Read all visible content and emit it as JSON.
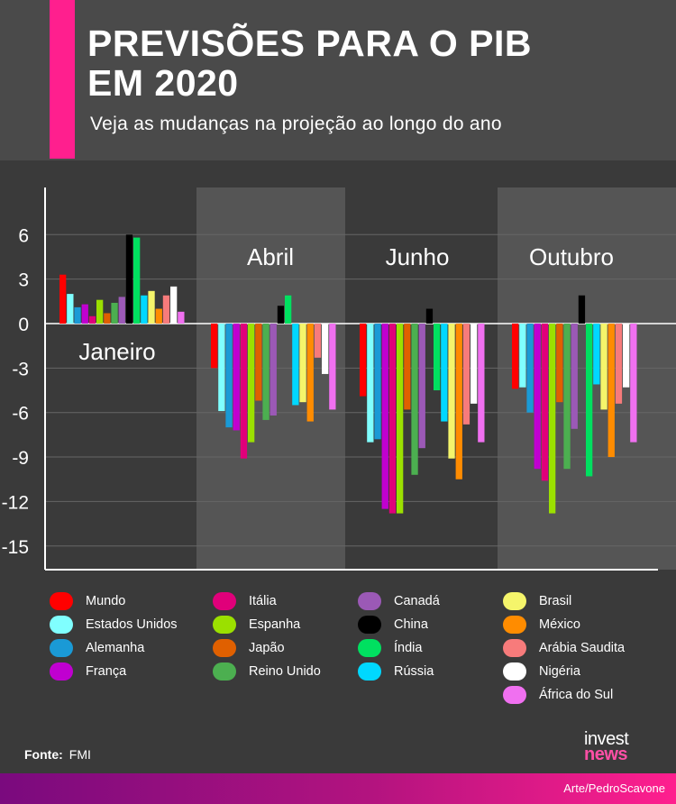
{
  "header": {
    "title_line1": "PREVISÕES PARA O PIB",
    "title_line2": "EM 2020",
    "subtitle": "Veja as mudanças na projeção ao longo do ano",
    "accent_color": "#ff1f8e"
  },
  "chart_data": {
    "type": "bar",
    "title": "",
    "ylim": [
      -16.5,
      9
    ],
    "yticks": [
      6,
      3,
      0,
      -3,
      -6,
      -9,
      -12,
      -15
    ],
    "ytick_labels": [
      "6",
      "3",
      "0",
      "-3",
      "-6",
      "-9",
      "-12",
      "-15"
    ],
    "categories": [
      "Janeiro",
      "Abril",
      "Junho",
      "Outubro"
    ],
    "series": [
      {
        "name": "Mundo",
        "color": "#ff0000",
        "values": [
          3.3,
          -3.0,
          -4.9,
          -4.4
        ]
      },
      {
        "name": "Estados Unidos",
        "color": "#80ffff",
        "values": [
          2.0,
          -5.9,
          -8.0,
          -4.3
        ]
      },
      {
        "name": "Alemanha",
        "color": "#1a9ad6",
        "values": [
          1.1,
          -7.0,
          -7.8,
          -6.0
        ]
      },
      {
        "name": "França",
        "color": "#c000d0",
        "values": [
          1.3,
          -7.2,
          -12.5,
          -9.8
        ]
      },
      {
        "name": "Itália",
        "color": "#e0007a",
        "values": [
          0.5,
          -9.1,
          -12.8,
          -10.6
        ]
      },
      {
        "name": "Espanha",
        "color": "#9be000",
        "values": [
          1.6,
          -8.0,
          -12.8,
          -12.8
        ]
      },
      {
        "name": "Japão",
        "color": "#e06000",
        "values": [
          0.7,
          -5.2,
          -5.8,
          -5.3
        ]
      },
      {
        "name": "Reino Unido",
        "color": "#4caf50",
        "values": [
          1.4,
          -6.5,
          -10.2,
          -9.8
        ]
      },
      {
        "name": "Canadá",
        "color": "#9b59b6",
        "values": [
          1.8,
          -6.2,
          -8.4,
          -7.1
        ]
      },
      {
        "name": "China",
        "color": "#000000",
        "values": [
          6.0,
          1.2,
          1.0,
          1.9
        ]
      },
      {
        "name": "Índia",
        "color": "#00e060",
        "values": [
          5.8,
          1.9,
          -4.5,
          -10.3
        ]
      },
      {
        "name": "Rússia",
        "color": "#00d8ff",
        "values": [
          1.9,
          -5.5,
          -6.6,
          -4.1
        ]
      },
      {
        "name": "Brasil",
        "color": "#f5f56b",
        "values": [
          2.2,
          -5.3,
          -9.1,
          -5.8
        ]
      },
      {
        "name": "México",
        "color": "#ff8c00",
        "values": [
          1.0,
          -6.6,
          -10.5,
          -9.0
        ]
      },
      {
        "name": "Arábia Saudita",
        "color": "#f77b7b",
        "values": [
          1.9,
          -2.3,
          -6.8,
          -5.4
        ]
      },
      {
        "name": "Nigéria",
        "color": "#ffffff",
        "values": [
          2.5,
          -3.4,
          -5.4,
          -4.3
        ]
      },
      {
        "name": "África do Sul",
        "color": "#f070f0",
        "values": [
          0.8,
          -5.8,
          -8.0,
          -8.0
        ]
      }
    ],
    "grid": true
  },
  "footer": {
    "source_label": "Fonte:",
    "source_value": "FMI",
    "brand_line1": "invest",
    "brand_line2": "news",
    "credit": "Arte/PedroScavone"
  }
}
